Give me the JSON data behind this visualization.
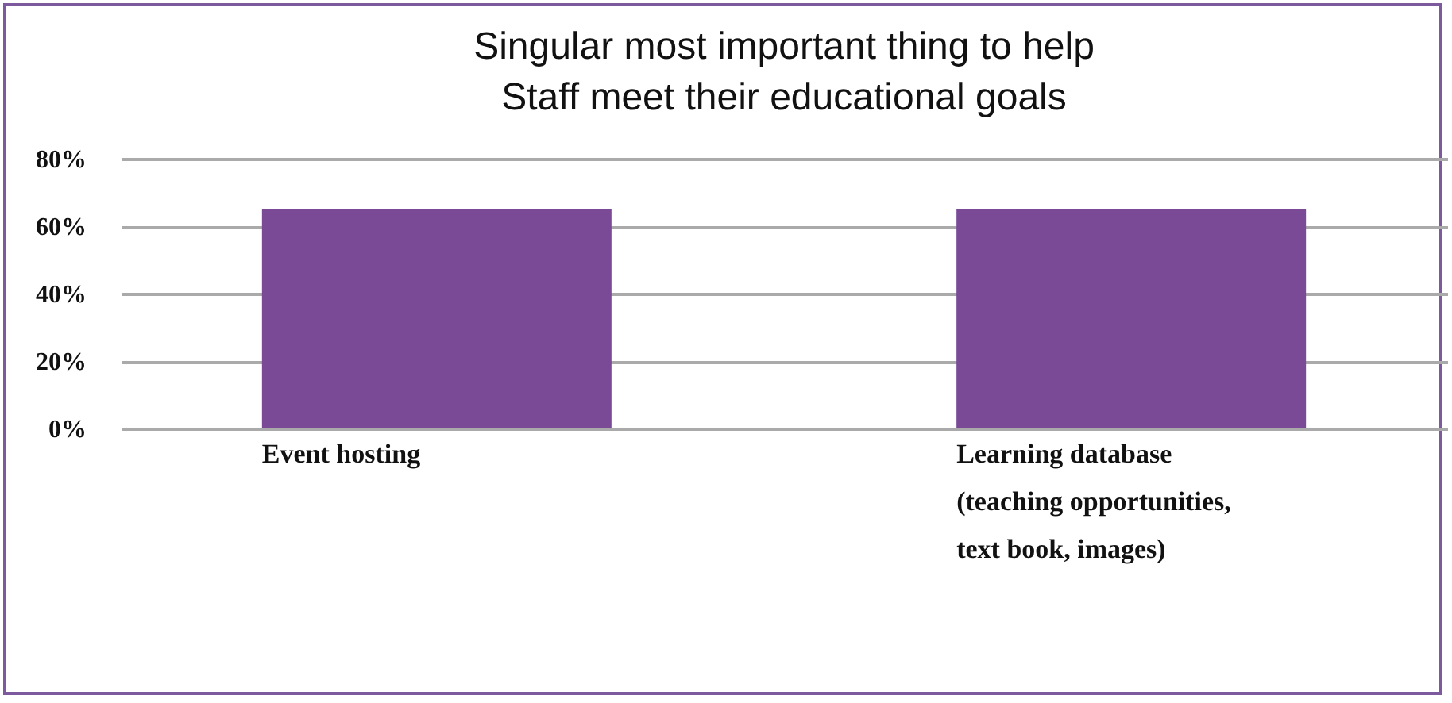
{
  "chart_data": {
    "type": "bar",
    "title": "Singular most important thing to help Staff meet their educational goals",
    "categories": [
      "Event hosting",
      "Learning database (teaching opportunities, text book, images)"
    ],
    "values": [
      65,
      65
    ],
    "color": "#7b4a97",
    "ylim": [
      0,
      80
    ],
    "yticks": [
      {
        "value": 0,
        "label": "0%"
      },
      {
        "value": 20,
        "label": "20%"
      },
      {
        "value": 40,
        "label": "40%"
      },
      {
        "value": 60,
        "label": "60%"
      },
      {
        "value": 80,
        "label": "80%"
      }
    ],
    "grid": "y"
  }
}
